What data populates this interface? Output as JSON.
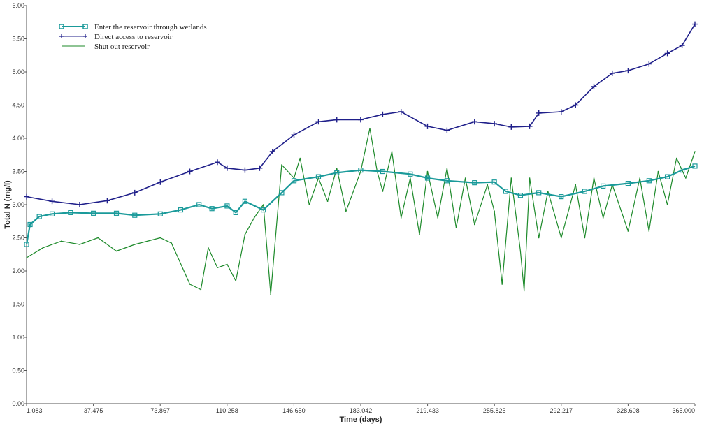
{
  "chart_data": {
    "type": "line",
    "xlabel": "Time (days)",
    "ylabel": "Total N (mg/l)",
    "xlim": [
      1.083,
      365.0
    ],
    "ylim": [
      0.0,
      6.0
    ],
    "x_ticks": [
      "1.083",
      "37.475",
      "73.867",
      "110.258",
      "146.650",
      "183.042",
      "219.433",
      "255.825",
      "292.217",
      "328.608",
      "365.000"
    ],
    "y_ticks": [
      "0.00",
      "0.50",
      "1.00",
      "1.50",
      "2.00",
      "2.50",
      "3.00",
      "3.50",
      "4.00",
      "4.50",
      "5.00",
      "5.50",
      "6.00"
    ],
    "grid": false,
    "legend_position": "top-left",
    "series": [
      {
        "name": "Enter the reservoir through wetlands",
        "color": "#1a9a9a",
        "marker": "square",
        "x": [
          1.1,
          3,
          8,
          15,
          25,
          37.5,
          50,
          60,
          73.9,
          85,
          95,
          102,
          110.3,
          115,
          120,
          130,
          140,
          146.7,
          160,
          170,
          183,
          195,
          210,
          219.4,
          230,
          245,
          255.8,
          262,
          270,
          280,
          292.2,
          305,
          315,
          328.6,
          340,
          350,
          358,
          365
        ],
        "y": [
          2.4,
          2.7,
          2.82,
          2.86,
          2.88,
          2.87,
          2.87,
          2.84,
          2.86,
          2.92,
          3.0,
          2.94,
          2.98,
          2.88,
          3.05,
          2.92,
          3.18,
          3.36,
          3.42,
          3.48,
          3.52,
          3.5,
          3.46,
          3.4,
          3.36,
          3.33,
          3.34,
          3.2,
          3.14,
          3.18,
          3.12,
          3.2,
          3.28,
          3.32,
          3.36,
          3.42,
          3.52,
          3.58
        ]
      },
      {
        "name": "Direct access to reservoir",
        "color": "#1f1f8a",
        "marker": "plus",
        "x": [
          1.1,
          15,
          30,
          45,
          60,
          73.9,
          90,
          105,
          110.3,
          120,
          128,
          135,
          146.7,
          160,
          170,
          183,
          195,
          205,
          219.4,
          230,
          245,
          255.8,
          265,
          275,
          280,
          292.2,
          300,
          310,
          320,
          328.6,
          340,
          350,
          358,
          365
        ],
        "y": [
          3.12,
          3.05,
          3.0,
          3.06,
          3.18,
          3.34,
          3.5,
          3.64,
          3.55,
          3.52,
          3.55,
          3.8,
          4.05,
          4.25,
          4.28,
          4.28,
          4.36,
          4.4,
          4.18,
          4.12,
          4.25,
          4.22,
          4.17,
          4.18,
          4.38,
          4.4,
          4.5,
          4.78,
          4.98,
          5.02,
          5.12,
          5.28,
          5.4,
          5.72
        ]
      },
      {
        "name": "Shut out reservoir",
        "color": "#1d8a2a",
        "marker": "none",
        "x": [
          1.1,
          10,
          20,
          30,
          40,
          50,
          60,
          73.9,
          80,
          90,
          96,
          100,
          105,
          110.3,
          115,
          120,
          125,
          130,
          134,
          140,
          146.7,
          150,
          155,
          160,
          165,
          170,
          175,
          183,
          188,
          192,
          195,
          200,
          205,
          210,
          215,
          219.4,
          225,
          230,
          235,
          240,
          245,
          252,
          255.8,
          260,
          265,
          270,
          272,
          275,
          280,
          285,
          292.2,
          300,
          305,
          310,
          315,
          320,
          328.6,
          335,
          340,
          345,
          350,
          355,
          360,
          365
        ],
        "y": [
          2.2,
          2.35,
          2.45,
          2.4,
          2.5,
          2.3,
          2.4,
          2.5,
          2.42,
          1.8,
          1.72,
          2.35,
          2.05,
          2.1,
          1.85,
          2.55,
          2.8,
          3.0,
          1.65,
          3.6,
          3.4,
          3.7,
          3.0,
          3.4,
          3.05,
          3.55,
          2.9,
          3.5,
          4.15,
          3.5,
          3.2,
          3.8,
          2.8,
          3.4,
          2.55,
          3.5,
          2.8,
          3.55,
          2.65,
          3.4,
          2.7,
          3.3,
          2.9,
          1.8,
          3.4,
          2.3,
          1.7,
          3.4,
          2.5,
          3.2,
          2.5,
          3.3,
          2.5,
          3.4,
          2.8,
          3.3,
          2.6,
          3.4,
          2.6,
          3.5,
          3.0,
          3.7,
          3.4,
          3.8
        ]
      }
    ]
  }
}
